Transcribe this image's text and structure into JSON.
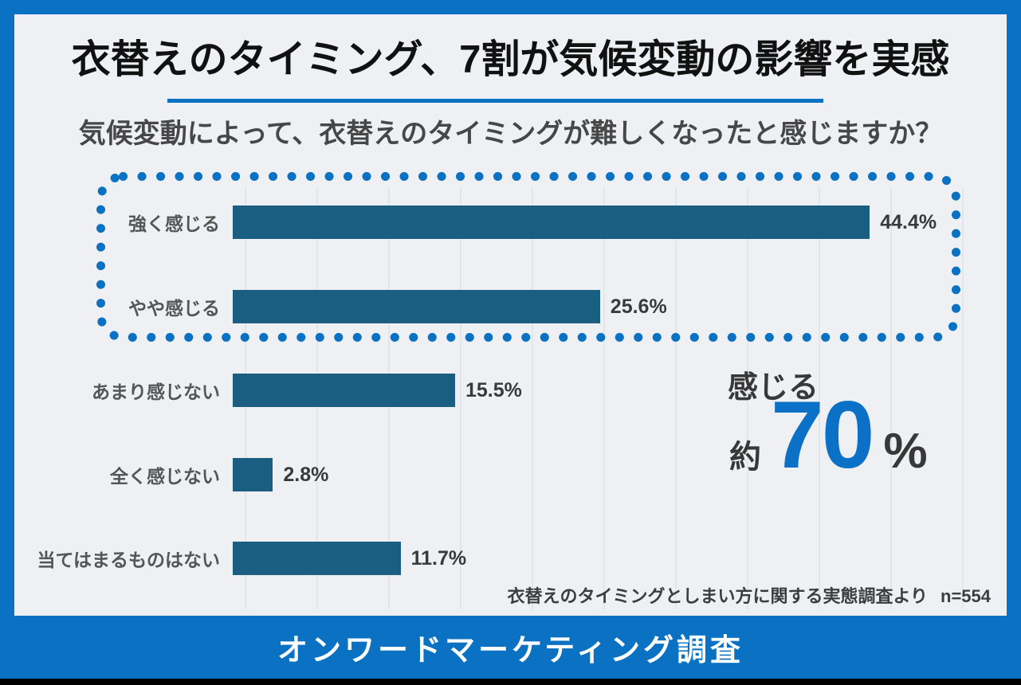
{
  "header": {
    "title": "衣替えのタイミング、7割が気候変動の影響を実感",
    "question": "気候変動によって、衣替えのタイミングが難しくなったと感じますか？"
  },
  "chart_data": {
    "type": "bar",
    "orientation": "horizontal",
    "title": "気候変動によって、衣替えのタイミングが難しくなったと感じますか？",
    "categories": [
      "強く感じる",
      "やや感じる",
      "あまり感じない",
      "全く感じない",
      "当てはまるものはない"
    ],
    "values": [
      44.4,
      25.6,
      15.5,
      2.8,
      11.7
    ],
    "value_labels": [
      "44.4%",
      "25.6%",
      "15.5%",
      "2.8%",
      "11.7%"
    ],
    "xlim": [
      0,
      50
    ],
    "gridline_step": 5,
    "grid": true,
    "bar_color": "#1a5f82",
    "highlight_group": [
      "強く感じる",
      "やや感じる"
    ],
    "highlight_style": "blue dotted rounded frame"
  },
  "highlight": {
    "label": "感じる",
    "prefix": "約",
    "value": "70",
    "unit": "%"
  },
  "source": {
    "text": "衣替えのタイミングとしまい方に関する実態調査より",
    "sample_size": "n=554"
  },
  "footer": {
    "text": "オンワードマーケティング調査"
  },
  "colors": {
    "accent_blue": "#0a71c3",
    "number_blue": "#0a71c6",
    "bar_teal": "#1a5f82",
    "panel_bg": "#eef0f4",
    "bottom_strip": "#000000"
  }
}
